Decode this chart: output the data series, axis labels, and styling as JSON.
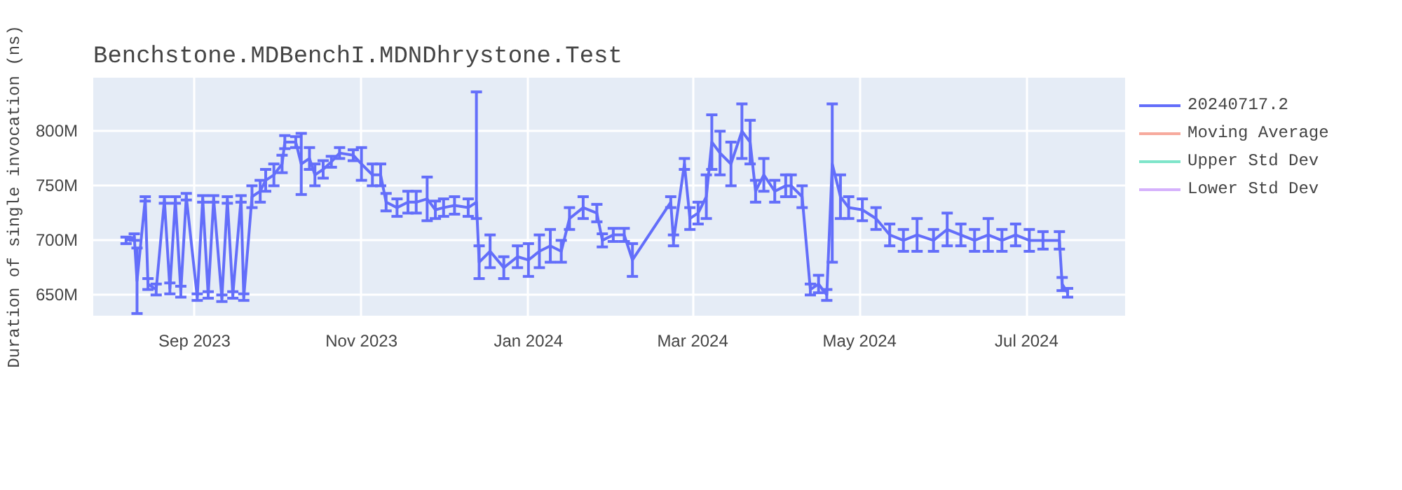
{
  "chart_data": {
    "type": "line",
    "title": "Benchstone.MDBenchI.MDNDhrystone.Test",
    "ylabel": "Duration of single invocation (ns)",
    "x": [
      "2023-08-07",
      "2023-08-10",
      "2023-08-11",
      "2023-08-14",
      "2023-08-15",
      "2023-08-18",
      "2023-08-21",
      "2023-08-23",
      "2023-08-25",
      "2023-08-27",
      "2023-08-29",
      "2023-09-02",
      "2023-09-04",
      "2023-09-06",
      "2023-09-08",
      "2023-09-11",
      "2023-09-13",
      "2023-09-15",
      "2023-09-18",
      "2023-09-19",
      "2023-09-22",
      "2023-09-25",
      "2023-09-27",
      "2023-09-30",
      "2023-10-03",
      "2023-10-04",
      "2023-10-08",
      "2023-10-10",
      "2023-10-13",
      "2023-10-15",
      "2023-10-18",
      "2023-10-21",
      "2023-10-24",
      "2023-10-29",
      "2023-11-01",
      "2023-11-05",
      "2023-11-08",
      "2023-11-10",
      "2023-11-14",
      "2023-11-18",
      "2023-11-21",
      "2023-11-25",
      "2023-11-28",
      "2023-12-01",
      "2023-12-05",
      "2023-12-10",
      "2023-12-13",
      "2023-12-14",
      "2023-12-18",
      "2023-12-23",
      "2023-12-28",
      "2024-01-01",
      "2024-01-05",
      "2024-01-09",
      "2024-01-13",
      "2024-01-16",
      "2024-01-21",
      "2024-01-26",
      "2024-01-28",
      "2024-02-01",
      "2024-02-05",
      "2024-02-08",
      "2024-02-22",
      "2024-02-23",
      "2024-02-27",
      "2024-02-29",
      "2024-03-03",
      "2024-03-06",
      "2024-03-08",
      "2024-03-11",
      "2024-03-15",
      "2024-03-19",
      "2024-03-22",
      "2024-03-24",
      "2024-03-27",
      "2024-03-31",
      "2024-04-04",
      "2024-04-06",
      "2024-04-10",
      "2024-04-13",
      "2024-04-16",
      "2024-04-19",
      "2024-04-21",
      "2024-04-24",
      "2024-04-27",
      "2024-05-02",
      "2024-05-07",
      "2024-05-12",
      "2024-05-17",
      "2024-05-22",
      "2024-05-28",
      "2024-06-02",
      "2024-06-07",
      "2024-06-12",
      "2024-06-17",
      "2024-06-22",
      "2024-06-27",
      "2024-07-02",
      "2024-07-07",
      "2024-07-13",
      "2024-07-14",
      "2024-07-16"
    ],
    "series": [
      {
        "name": "20240717.2",
        "color": "#636efa",
        "values": [
          700000000.0,
          703000000.0,
          663000000.0,
          738000000.0,
          660000000.0,
          655000000.0,
          737000000.0,
          656000000.0,
          737000000.0,
          653000000.0,
          740000000.0,
          648000000.0,
          738000000.0,
          650000000.0,
          738000000.0,
          647000000.0,
          737000000.0,
          650000000.0,
          738000000.0,
          648000000.0,
          740000000.0,
          745000000.0,
          755000000.0,
          760000000.0,
          770000000.0,
          790000000.0,
          790000000.0,
          770000000.0,
          775000000.0,
          760000000.0,
          765000000.0,
          772000000.0,
          780000000.0,
          778000000.0,
          770000000.0,
          760000000.0,
          760000000.0,
          735000000.0,
          730000000.0,
          735000000.0,
          735000000.0,
          738000000.0,
          728000000.0,
          730000000.0,
          732000000.0,
          730000000.0,
          735000000.0,
          680000000.0,
          690000000.0,
          675000000.0,
          685000000.0,
          682000000.0,
          690000000.0,
          695000000.0,
          690000000.0,
          720000000.0,
          730000000.0,
          725000000.0,
          700000000.0,
          705000000.0,
          705000000.0,
          682000000.0,
          735000000.0,
          700000000.0,
          770000000.0,
          720000000.0,
          725000000.0,
          740000000.0,
          790000000.0,
          780000000.0,
          770000000.0,
          800000000.0,
          790000000.0,
          745000000.0,
          760000000.0,
          745000000.0,
          750000000.0,
          750000000.0,
          740000000.0,
          655000000.0,
          660000000.0,
          650000000.0,
          770000000.0,
          740000000.0,
          730000000.0,
          728000000.0,
          720000000.0,
          705000000.0,
          700000000.0,
          705000000.0,
          700000000.0,
          710000000.0,
          705000000.0,
          700000000.0,
          705000000.0,
          700000000.0,
          705000000.0,
          700000000.0,
          700000000.0,
          700000000.0,
          660000000.0,
          652000000.0
        ],
        "errors": [
          3000000.0,
          3000000.0,
          30000000.0,
          2000000.0,
          5000000.0,
          5000000.0,
          3000000.0,
          5000000.0,
          3000000.0,
          5000000.0,
          3000000.0,
          3000000.0,
          3000000.0,
          3000000.0,
          3000000.0,
          3000000.0,
          3000000.0,
          3000000.0,
          3000000.0,
          3000000.0,
          10000000.0,
          10000000.0,
          10000000.0,
          10000000.0,
          8000000.0,
          6000000.0,
          5000000.0,
          28000000.0,
          10000000.0,
          10000000.0,
          8000000.0,
          5000000.0,
          5000000.0,
          5000000.0,
          15000000.0,
          10000000.0,
          10000000.0,
          8000000.0,
          8000000.0,
          10000000.0,
          10000000.0,
          20000000.0,
          8000000.0,
          8000000.0,
          8000000.0,
          8000000.0,
          [
            720000000.0,
            836000000.0
          ],
          15000000.0,
          15000000.0,
          10000000.0,
          10000000.0,
          15000000.0,
          15000000.0,
          15000000.0,
          10000000.0,
          10000000.0,
          10000000.0,
          8000000.0,
          6000000.0,
          6000000.0,
          6000000.0,
          15000000.0,
          5000000.0,
          5000000.0,
          5000000.0,
          10000000.0,
          10000000.0,
          20000000.0,
          25000000.0,
          20000000.0,
          20000000.0,
          25000000.0,
          20000000.0,
          10000000.0,
          15000000.0,
          10000000.0,
          10000000.0,
          10000000.0,
          10000000.0,
          5000000.0,
          8000000.0,
          5000000.0,
          [
            680000000.0,
            825000000.0
          ],
          20000000.0,
          10000000.0,
          10000000.0,
          10000000.0,
          10000000.0,
          10000000.0,
          15000000.0,
          10000000.0,
          15000000.0,
          10000000.0,
          10000000.0,
          15000000.0,
          10000000.0,
          10000000.0,
          10000000.0,
          8000000.0,
          8000000.0,
          6000000.0,
          4000000.0
        ]
      },
      {
        "name": "Moving Average",
        "color": "#ef553b",
        "values": [
          null,
          null,
          null,
          null,
          null,
          null,
          null,
          null,
          null,
          null,
          null,
          null,
          null,
          null,
          null,
          null,
          null,
          null,
          null,
          null,
          null,
          null,
          null,
          null,
          null,
          null,
          null,
          null,
          null,
          null,
          null,
          null,
          null,
          null,
          null,
          null,
          null,
          null,
          null,
          null,
          null,
          null,
          null,
          null,
          null,
          null,
          null,
          null,
          null,
          null,
          null,
          null,
          null,
          null,
          null,
          null,
          null,
          null,
          null,
          null,
          null,
          null,
          null,
          null,
          null,
          null,
          null,
          null,
          null,
          null,
          null,
          null,
          null,
          null,
          null,
          null,
          null,
          null,
          null,
          null,
          null,
          null,
          null,
          null,
          null,
          null,
          null,
          null,
          null,
          null,
          null,
          null,
          null,
          null,
          null,
          null,
          null,
          null,
          null,
          null,
          null,
          null
        ]
      },
      {
        "name": "Upper Std Dev",
        "color": "#00cc96",
        "values": [
          null,
          null,
          null,
          null,
          null,
          null,
          null,
          null,
          null,
          null,
          null,
          null,
          null,
          null,
          null,
          null,
          null,
          null,
          null,
          null,
          null,
          null,
          null,
          null,
          null,
          null,
          null,
          null,
          null,
          null,
          null,
          null,
          null,
          null,
          null,
          null,
          null,
          null,
          null,
          null,
          null,
          null,
          null,
          null,
          null,
          null,
          null,
          null,
          null,
          null,
          null,
          null,
          null,
          null,
          null,
          null,
          null,
          null,
          null,
          null,
          null,
          null,
          null,
          null,
          null,
          null,
          null,
          null,
          null,
          null,
          null,
          null,
          null,
          null,
          null,
          null,
          null,
          null,
          null,
          null,
          null,
          null,
          null,
          null,
          null,
          null,
          null,
          null,
          null,
          null,
          null,
          null,
          null,
          null,
          null,
          null,
          null,
          null,
          null,
          null,
          null,
          null
        ]
      },
      {
        "name": "Lower Std Dev",
        "color": "#ab63fa",
        "values": [
          null,
          null,
          null,
          null,
          null,
          null,
          null,
          null,
          null,
          null,
          null,
          null,
          null,
          null,
          null,
          null,
          null,
          null,
          null,
          null,
          null,
          null,
          null,
          null,
          null,
          null,
          null,
          null,
          null,
          null,
          null,
          null,
          null,
          null,
          null,
          null,
          null,
          null,
          null,
          null,
          null,
          null,
          null,
          null,
          null,
          null,
          null,
          null,
          null,
          null,
          null,
          null,
          null,
          null,
          null,
          null,
          null,
          null,
          null,
          null,
          null,
          null,
          null,
          null,
          null,
          null,
          null,
          null,
          null,
          null,
          null,
          null,
          null,
          null,
          null,
          null,
          null,
          null,
          null,
          null,
          null,
          null,
          null,
          null,
          null,
          null,
          null,
          null,
          null,
          null,
          null,
          null,
          null,
          null,
          null,
          null,
          null,
          null,
          null,
          null,
          null,
          null
        ]
      }
    ],
    "xlim": [
      "2023-07-26",
      "2024-08-06"
    ],
    "xticks": [
      {
        "value": "2023-09-01",
        "label": "Sep 2023"
      },
      {
        "value": "2023-11-01",
        "label": "Nov 2023"
      },
      {
        "value": "2024-01-01",
        "label": "Jan 2024"
      },
      {
        "value": "2024-03-01",
        "label": "Mar 2024"
      },
      {
        "value": "2024-05-01",
        "label": "May 2024"
      },
      {
        "value": "2024-07-01",
        "label": "Jul 2024"
      }
    ],
    "ylim": [
      631000000.0,
      849000000.0
    ],
    "yticks": [
      {
        "value": 650000000.0,
        "label": "650M"
      },
      {
        "value": 700000000.0,
        "label": "700M"
      },
      {
        "value": 750000000.0,
        "label": "750M"
      },
      {
        "value": 800000000.0,
        "label": "800M"
      }
    ],
    "grid": true,
    "legend": "top right",
    "marker": "none",
    "line_style": "solid"
  }
}
